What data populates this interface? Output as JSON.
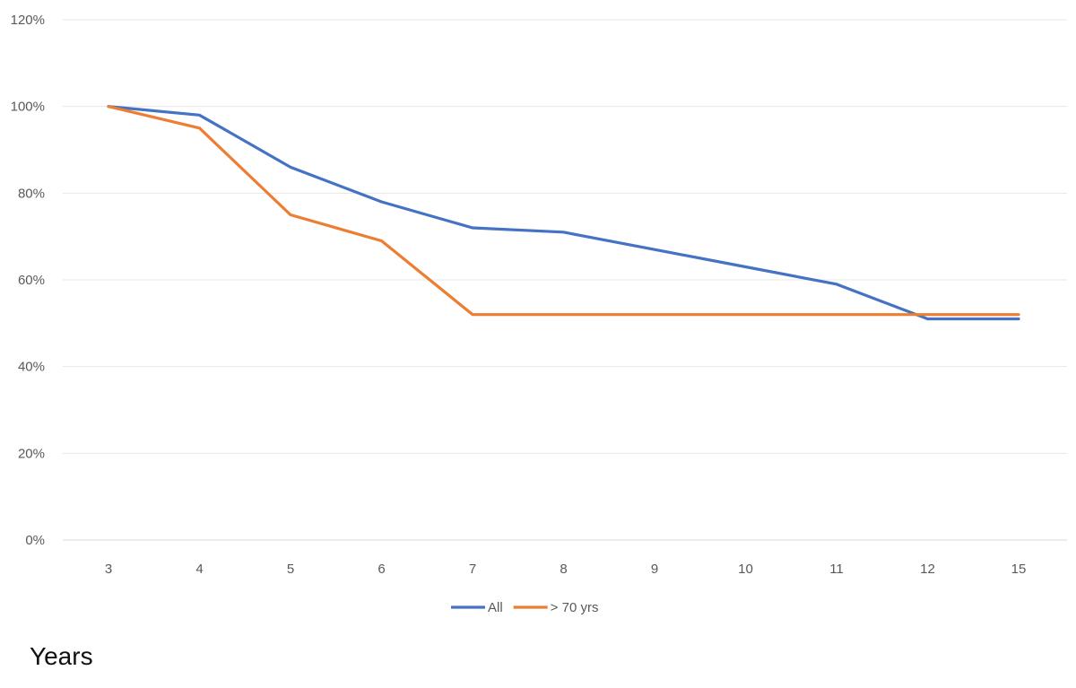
{
  "chart_data": {
    "type": "line",
    "categories": [
      "3",
      "4",
      "5",
      "6",
      "7",
      "8",
      "9",
      "10",
      "11",
      "12",
      "15"
    ],
    "series": [
      {
        "name": "All",
        "color": "#4472C4",
        "values": [
          100,
          98,
          86,
          78,
          72,
          71,
          67,
          63,
          59,
          51,
          51
        ]
      },
      {
        "name": "> 70 yrs",
        "color": "#ED7D31",
        "values": [
          100,
          95,
          75,
          69,
          52,
          52,
          52,
          52,
          52,
          52,
          52
        ]
      }
    ],
    "y_ticks": [
      "0%",
      "20%",
      "40%",
      "60%",
      "80%",
      "100%",
      "120%"
    ],
    "ylim": [
      0,
      120
    ],
    "xlabel": "Years",
    "ylabel": "",
    "grid": true,
    "legend_position": "bottom"
  }
}
